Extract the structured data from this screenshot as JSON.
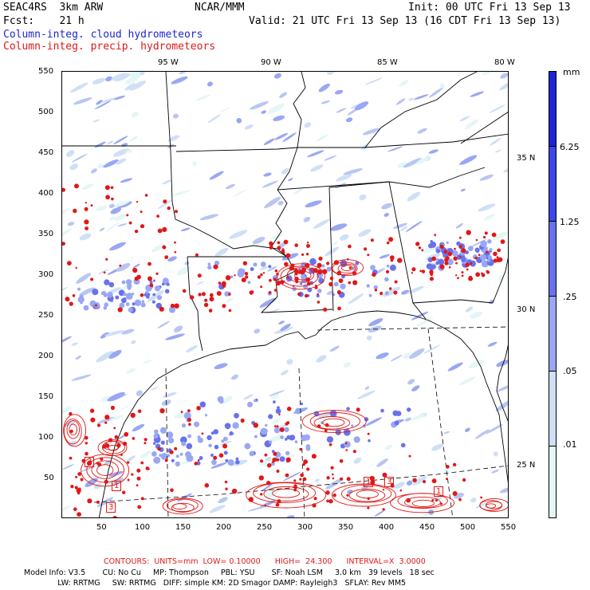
{
  "header": {
    "line1_left": "SEAC4RS  3km ARW",
    "line1_center": "NCAR/MMM",
    "line1_right": "Init: 00 UTC Fri 13 Sep 13",
    "line2_left": "Fcst:    21 h",
    "line2_right": "Valid: 21 UTC Fri 13 Sep 13 (16 CDT Fri 13 Sep 13)",
    "field1": "Column-integ. cloud hydrometeors",
    "field2": "Column-integ. precip. hydrometeors"
  },
  "map": {
    "lon_labels": [
      "95 W",
      "90 W",
      "85 W",
      "80 W"
    ],
    "lat_labels": [
      "35 N",
      "30 N",
      "25 N"
    ],
    "x_ticks": [
      "50",
      "100",
      "150",
      "200",
      "250",
      "300",
      "350",
      "400",
      "450",
      "500",
      "550"
    ],
    "y_ticks": [
      "550",
      "500",
      "450",
      "400",
      "350",
      "300",
      "250",
      "200",
      "150",
      "100",
      "50"
    ],
    "contour_labels": [
      "3",
      "1",
      "3",
      "1",
      "3",
      "1"
    ]
  },
  "colorbar": {
    "unit": "mm",
    "labels": [
      "6.25",
      "1.25",
      ".25",
      ".05",
      ".01"
    ],
    "colors": [
      "#1f24d6",
      "#3d46e8",
      "#6872ec",
      "#9aa7f2",
      "#cfe0f6",
      "#e4f6f6",
      "#ffffff"
    ]
  },
  "footer": {
    "contours": "CONTOURS:  UNITS=mm  LOW= 0.10000      HIGH=  24.300      INTERVAL=X  3.0000",
    "model1": "Model Info: V3.5       CU: No Cu     MP: Thompson     PBL: YSU       SF: Noah LSM     3.0 km   39 levels   18 sec",
    "model2": "              LW: RRTMG     SW: RRTMG   DIFF: simple KM: 2D Smagor DAMP: Rayleigh3   SFLAY: Rev MM5"
  },
  "colors": {
    "cloud": "#1f24d6",
    "precip": "#e01818"
  }
}
